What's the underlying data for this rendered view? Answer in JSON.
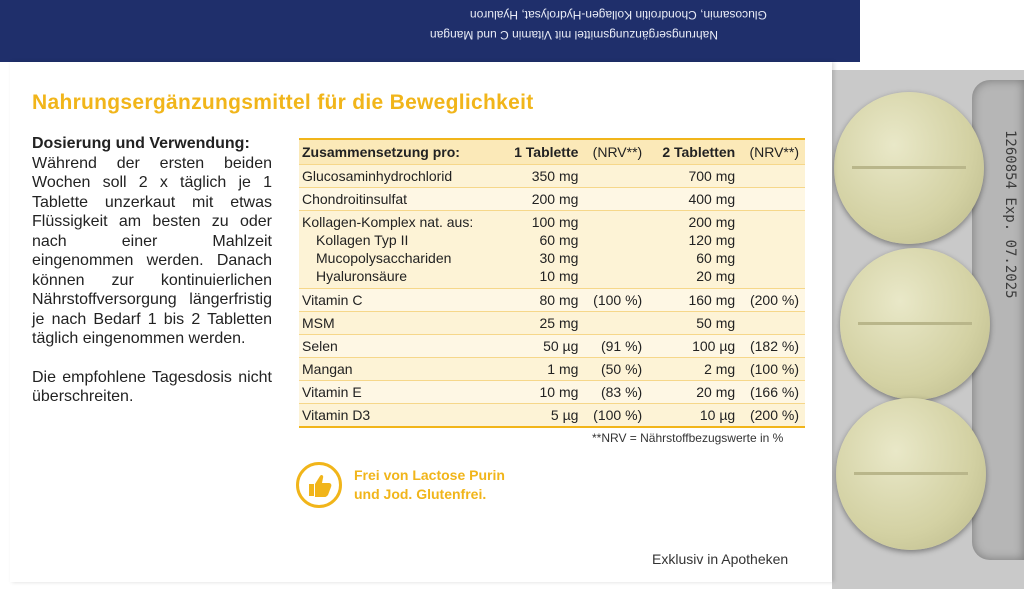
{
  "colors": {
    "flap": "#1f2f6b",
    "accent": "#f1b51a",
    "table_header_bg": "#fbe9b8",
    "table_row_bg": "#fdf3d6"
  },
  "flap": {
    "line1": "Glucosamin, Chondroitin Kollagen-Hydrolysat, Hyaluron",
    "line2": "Nahrungsergänzungsmittel mit Vitamin C und Mangan"
  },
  "title": "Nahrungsergänzungsmittel für die Beweglichkeit",
  "dosage": {
    "heading": "Dosierung und Verwendung:",
    "text": "Während der ersten beiden Wochen soll 2 x täglich je 1 Tablette unzerkaut mit etwas Flüssigkeit am besten zu oder nach einer Mahlzeit eingenommen werden. Danach können zur kontinuierlichen Nährstoffversorgung längerfristig je nach Bedarf 1 bis 2 Tabletten täglich eingenommen werden.",
    "warning": "Die empfohlene Tagesdosis nicht überschreiten."
  },
  "table": {
    "headers": {
      "label": "Zusammensetzung pro:",
      "one": "1 Tablette",
      "nrv1": "(NRV**)",
      "two": "2 Tabletten",
      "nrv2": "(NRV**)"
    },
    "rows": [
      {
        "name": "Glucosaminhydrochlorid",
        "one": "350 mg",
        "nrv1": "",
        "two": "700 mg",
        "nrv2": ""
      },
      {
        "name": "Chondroitinsulfat",
        "one": "200 mg",
        "nrv1": "",
        "two": "400 mg",
        "nrv2": ""
      },
      {
        "name": "Kollagen-Komplex nat. aus:",
        "one": "100 mg",
        "nrv1": "",
        "two": "200 mg",
        "nrv2": ""
      },
      {
        "name": "Kollagen Typ II",
        "one": "60 mg",
        "nrv1": "",
        "two": "120 mg",
        "nrv2": ""
      },
      {
        "name": "Mucopolysacchariden",
        "one": "30 mg",
        "nrv1": "",
        "two": "60 mg",
        "nrv2": ""
      },
      {
        "name": "Hyaluronsäure",
        "one": "10 mg",
        "nrv1": "",
        "two": "20 mg",
        "nrv2": ""
      },
      {
        "name": "Vitamin C",
        "one": "80 mg",
        "nrv1": "(100 %)",
        "two": "160 mg",
        "nrv2": "(200 %)"
      },
      {
        "name": "MSM",
        "one": "25 mg",
        "nrv1": "",
        "two": "50 mg",
        "nrv2": ""
      },
      {
        "name": "Selen",
        "one": "50 µg",
        "nrv1": "(91 %)",
        "two": "100 µg",
        "nrv2": "(182 %)"
      },
      {
        "name": "Mangan",
        "one": "1 mg",
        "nrv1": "(50 %)",
        "two": "2 mg",
        "nrv2": "(100 %)"
      },
      {
        "name": "Vitamin E",
        "one": "10 mg",
        "nrv1": "(83 %)",
        "two": "20 mg",
        "nrv2": "(166 %)"
      },
      {
        "name": "Vitamin D3",
        "one": "5 µg",
        "nrv1": "(100 %)",
        "two": "10 µg",
        "nrv2": "(200 %)"
      }
    ],
    "footnote": "**NRV = Nährstoffbezugswerte in %"
  },
  "badge": {
    "icon": "thumbs-up-icon",
    "line1": "Frei von Lactose Purin",
    "line2": "und Jod. Glutenfrei."
  },
  "exclusive": "Exklusiv in Apotheken",
  "blister": {
    "print": "1260854  Exp. 07.2025"
  }
}
